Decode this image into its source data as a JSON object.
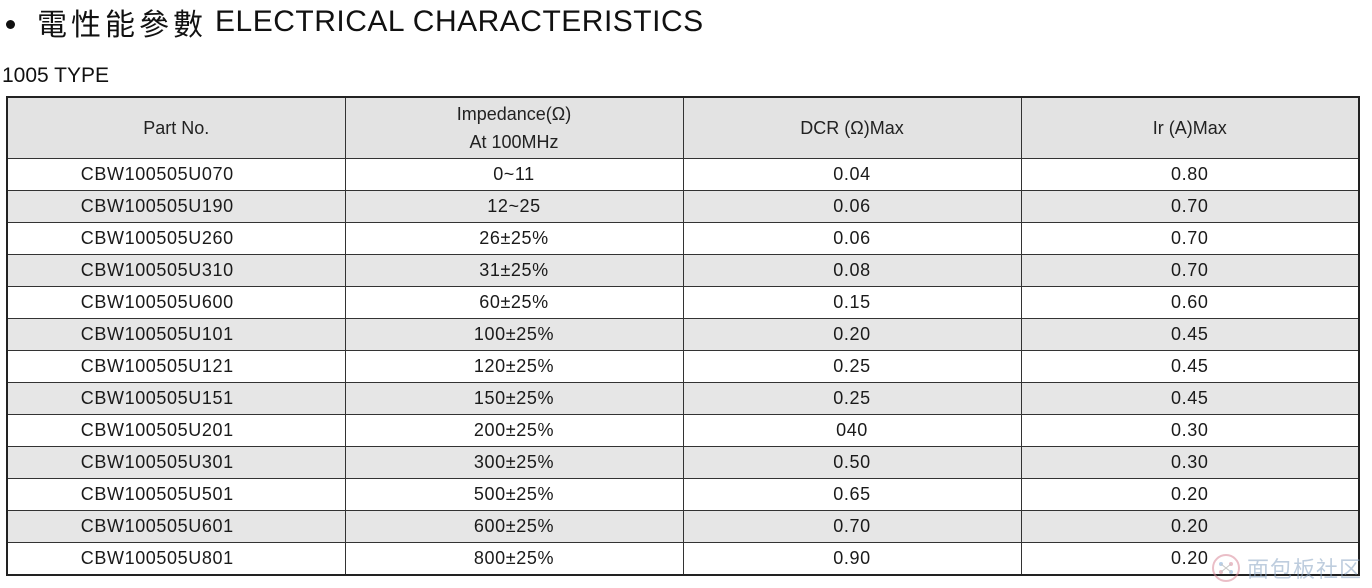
{
  "heading": {
    "chinese": "電性能參數",
    "english": "ELECTRICAL CHARACTERISTICS"
  },
  "subtitle": "1005 TYPE",
  "table": {
    "headers": {
      "part": "Part No.",
      "impedance_line1": "Impedance(Ω)",
      "impedance_line2": "At 100MHz",
      "dcr": "DCR (Ω)Max",
      "ir": "Ir (A)Max"
    },
    "rows": [
      {
        "part": "CBW100505U070",
        "impedance": "0~11",
        "dcr": "0.04",
        "ir": "0.80"
      },
      {
        "part": "CBW100505U190",
        "impedance": "12~25",
        "dcr": "0.06",
        "ir": "0.70"
      },
      {
        "part": "CBW100505U260",
        "impedance": "26±25%",
        "dcr": "0.06",
        "ir": "0.70"
      },
      {
        "part": "CBW100505U310",
        "impedance": "31±25%",
        "dcr": "0.08",
        "ir": "0.70"
      },
      {
        "part": "CBW100505U600",
        "impedance": "60±25%",
        "dcr": "0.15",
        "ir": "0.60"
      },
      {
        "part": "CBW100505U101",
        "impedance": "100±25%",
        "dcr": "0.20",
        "ir": "0.45"
      },
      {
        "part": "CBW100505U121",
        "impedance": "120±25%",
        "dcr": "0.25",
        "ir": "0.45"
      },
      {
        "part": "CBW100505U151",
        "impedance": "150±25%",
        "dcr": "0.25",
        "ir": "0.45"
      },
      {
        "part": "CBW100505U201",
        "impedance": "200±25%",
        "dcr": "040",
        "ir": "0.30"
      },
      {
        "part": "CBW100505U301",
        "impedance": "300±25%",
        "dcr": "0.50",
        "ir": "0.30"
      },
      {
        "part": "CBW100505U501",
        "impedance": "500±25%",
        "dcr": "0.65",
        "ir": "0.20"
      },
      {
        "part": "CBW100505U601",
        "impedance": "600±25%",
        "dcr": "0.70",
        "ir": "0.20"
      },
      {
        "part": "CBW100505U801",
        "impedance": "800±25%",
        "dcr": "0.90",
        "ir": "0.20"
      }
    ]
  },
  "watermark": {
    "text": "面包板社区",
    "icon": "bread-logo-icon",
    "color": "#8aa6c4"
  }
}
